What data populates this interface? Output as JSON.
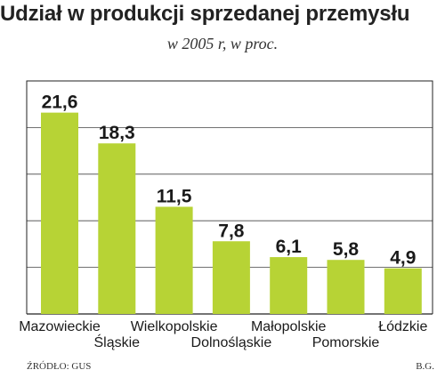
{
  "header": {
    "title": "Udział w produkcji sprzedanej przemysłu",
    "subtitle": "w 2005 r, w proc."
  },
  "footer": {
    "source": "ŹRÓDŁO: GUS",
    "author": "B.G."
  },
  "colors": {
    "bar": "#b7d335",
    "frame": "#222222",
    "gridline": "#444444"
  },
  "chart_data": {
    "type": "bar",
    "title": "Udział w produkcji sprzedanej przemysłu",
    "subtitle": "w 2005 r, w proc.",
    "categories": [
      "Mazowieckie",
      "Śląskie",
      "Wielkopolskie",
      "Dolnośląskie",
      "Małopolskie",
      "Pomorskie",
      "Łódzkie"
    ],
    "values": [
      21.6,
      18.3,
      11.5,
      7.8,
      6.1,
      5.8,
      4.9
    ],
    "value_labels": [
      "21,6",
      "18,3",
      "11,5",
      "7,8",
      "6,1",
      "5,8",
      "4,9"
    ],
    "ylim": [
      0,
      25
    ],
    "y_gridlines": [
      5,
      10,
      15,
      20
    ],
    "grid": true,
    "xlabel": "",
    "ylabel": ""
  }
}
